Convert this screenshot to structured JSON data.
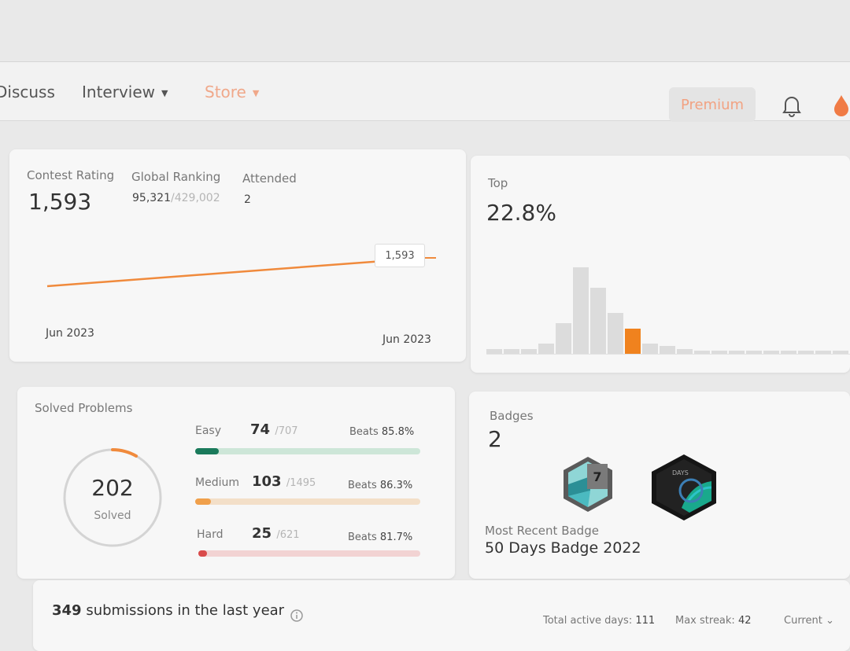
{
  "nav": {
    "discuss": "Discuss",
    "interview": "Interview",
    "store": "Store",
    "premium": "Premium"
  },
  "contest": {
    "rating_label": "Contest Rating",
    "rating": "1,593",
    "ranking_label": "Global Ranking",
    "ranking": "95,321",
    "ranking_total": "/429,002",
    "attended_label": "Attended",
    "attended": "2",
    "tooltip": "1,593",
    "x_start": "Jun 2023",
    "x_end": "Jun 2023"
  },
  "top": {
    "label": "Top",
    "value": "22.8%",
    "accent": "#f0821e"
  },
  "chart_data": {
    "type": "bar",
    "values": [
      1,
      1,
      1,
      2,
      6,
      17,
      13,
      8,
      5,
      2,
      1.5,
      1,
      0.6,
      0.5,
      0.5,
      0.4,
      0.4,
      0.3,
      0.3,
      0.3,
      0.2,
      0.2
    ],
    "highlight_index": 8
  },
  "solved": {
    "label": "Solved Problems",
    "count": "202",
    "sub": "Solved",
    "easy": {
      "label": "Easy",
      "count": "74",
      "total": "/707",
      "beats_label": "Beats",
      "beats": "85.8%",
      "fraction": 0.105,
      "color": "#1a7a5b",
      "track": "#cde6d8"
    },
    "medium": {
      "label": "Medium",
      "count": "103",
      "total": "/1495",
      "beats_label": "Beats",
      "beats": "86.3%",
      "fraction": 0.069,
      "color": "#f0a04b",
      "track": "#f3dfc8"
    },
    "hard": {
      "label": "Hard",
      "count": "25",
      "total": "/621",
      "beats_label": "Beats",
      "beats": "81.7%",
      "fraction": 0.04,
      "color": "#d94a4a",
      "track": "#f2d3d3"
    }
  },
  "badges": {
    "label": "Badges",
    "count": "2",
    "recent_label": "Most Recent Badge",
    "recent_name": "50 Days Badge 2022",
    "badge1_text": "7",
    "badge2_text": "DAYS"
  },
  "submissions": {
    "count": "349",
    "text": "submissions in the last year",
    "active_label": "Total active days:",
    "active": "111",
    "streak_label": "Max streak:",
    "streak": "42",
    "select": "Current"
  }
}
